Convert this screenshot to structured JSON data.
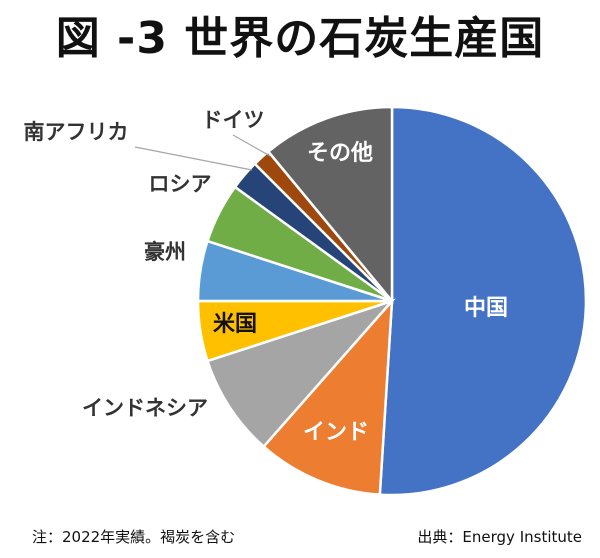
{
  "title": "図 -3 世界の石炭生産国",
  "note_left": "注：2022年実績。褐炭を含む",
  "note_right": "出典：Energy Institute",
  "chart_data": {
    "type": "pie",
    "title": "図 -3 世界の石炭生産国",
    "unit": "%",
    "slices": [
      {
        "name": "中国",
        "value": 51.0,
        "color": "#4472C4",
        "label_color": "#ffffff",
        "label_pos": "inside"
      },
      {
        "name": "インド",
        "value": 10.5,
        "color": "#ED7D31",
        "label_color": "#ffffff",
        "label_pos": "inside"
      },
      {
        "name": "インドネシア",
        "value": 8.5,
        "color": "#A5A5A5",
        "label_color": "#333333",
        "label_pos": "outside"
      },
      {
        "name": "米国",
        "value": 5.0,
        "color": "#FFC000",
        "label_color": "#111111",
        "label_pos": "inside"
      },
      {
        "name": "豪州",
        "value": 5.0,
        "color": "#5B9BD5",
        "label_color": "#333333",
        "label_pos": "outside"
      },
      {
        "name": "ロシア",
        "value": 5.0,
        "color": "#70AD47",
        "label_color": "#333333",
        "label_pos": "outside"
      },
      {
        "name": "南アフリカ",
        "value": 2.5,
        "color": "#264478",
        "label_color": "#333333",
        "label_pos": "outside"
      },
      {
        "name": "ドイツ",
        "value": 1.5,
        "color": "#9E480E",
        "label_color": "#333333",
        "label_pos": "outside"
      },
      {
        "name": "その他",
        "value": 11.0,
        "color": "#636363",
        "label_color": "#ffffff",
        "label_pos": "inside"
      }
    ],
    "start": "12 o'clock",
    "direction": "clockwise",
    "legend": "none"
  }
}
